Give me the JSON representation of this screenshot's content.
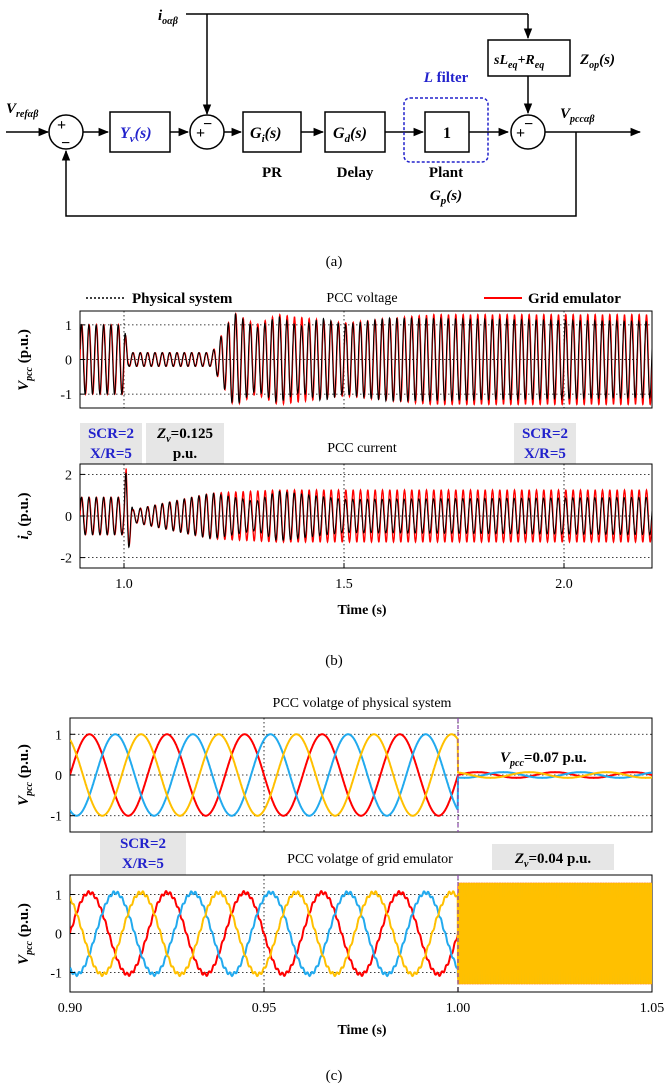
{
  "colors": {
    "physical": "#000000",
    "emulator": "#ff0000",
    "phase_a": "#ff0000",
    "phase_b": "#22aaee",
    "phase_c": "#ffc000",
    "blue_text": "#2222cc",
    "highlight_bg": "#e6e6e6"
  },
  "panel_a": {
    "input_label": "i",
    "input_sub": "oαβ",
    "ref_label": "V",
    "ref_sub": "refαβ",
    "yv_block": "Y",
    "yv_sub": "v",
    "yv_arg": "(s)",
    "gi_block": "G",
    "gi_sub": "i",
    "gi_arg": "(s)",
    "gd_block": "G",
    "gd_sub": "d",
    "gd_arg": "(s)",
    "plant_block": "1",
    "zop_block_s": "sL",
    "zop_block_sub1": "eq",
    "zop_block_plus": "+R",
    "zop_block_sub2": "eq",
    "zop_label": "Z",
    "zop_sub": "op",
    "zop_arg": "(s)",
    "filter_label_l": "L",
    "filter_label_rest": " filter",
    "output_label": "V",
    "output_sub": "pccαβ",
    "pr_label": "PR",
    "delay_label": "Delay",
    "plant_label": "Plant",
    "gp_label": "G",
    "gp_sub": "p",
    "gp_arg": "(s)",
    "sum_plus": "+",
    "sum_minus": "−",
    "caption": "(a)"
  },
  "panel_b": {
    "legend_physical": "Physical system",
    "legend_emulator": "Grid emulator",
    "top_title": "PCC voltage",
    "bottom_title": "PCC current",
    "ylabel_top": "V",
    "ylabel_top_sub": "pcc",
    "ylabel_top_unit": " (p.u.)",
    "ylabel_bottom": "i",
    "ylabel_bottom_sub": "o",
    "ylabel_bottom_unit": " (p.u.)",
    "ann_scr_left": "SCR=2",
    "ann_xr_left": "X/R=5",
    "ann_zv_1": "Z",
    "ann_zv_sub": "v",
    "ann_zv_2": "=0.125",
    "ann_zv_3": "p.u.",
    "ann_scr_right": "SCR=2",
    "ann_xr_right": "X/R=5",
    "xlabel": "Time (s)",
    "caption": "(b)"
  },
  "panel_c": {
    "top_title": "PCC volatge of physical system",
    "bottom_title": "PCC volatge of grid emulator",
    "ylabel": "V",
    "ylabel_sub": "pcc",
    "ylabel_unit": " (p.u.)",
    "ann_scr": "SCR=2",
    "ann_xr": "X/R=5",
    "ann_vpcc_1": "V",
    "ann_vpcc_sub": "pcc",
    "ann_vpcc_2": "=0.07 p.u.",
    "ann_zv_1": "Z",
    "ann_zv_sub": "v",
    "ann_zv_2": "=0.04 p.u.",
    "xlabel": "Time (s)",
    "caption": "(c)"
  },
  "chart_data": [
    {
      "type": "line",
      "title": "PCC voltage",
      "xlim": [
        0.9,
        2.2
      ],
      "ylim": [
        -1.4,
        1.4
      ],
      "yticks": [
        -1,
        0,
        1
      ],
      "xticks": [
        1.0,
        1.5,
        2.0
      ],
      "ylabel": "Vpcc (p.u.)",
      "series": [
        {
          "name": "Physical system",
          "envelope": [
            [
              0.9,
              1.0
            ],
            [
              1.0,
              1.0
            ],
            [
              1.01,
              0.2
            ],
            [
              1.2,
              0.2
            ],
            [
              1.25,
              1.35
            ],
            [
              1.3,
              0.9
            ],
            [
              1.35,
              1.25
            ],
            [
              1.4,
              0.95
            ],
            [
              1.45,
              1.2
            ],
            [
              1.5,
              1.0
            ],
            [
              1.6,
              1.2
            ],
            [
              2.2,
              1.1
            ]
          ]
        },
        {
          "name": "Grid emulator",
          "envelope": [
            [
              0.9,
              1.0
            ],
            [
              1.0,
              1.0
            ],
            [
              1.01,
              0.2
            ],
            [
              1.2,
              0.2
            ],
            [
              1.25,
              1.35
            ],
            [
              1.3,
              1.0
            ],
            [
              1.35,
              1.3
            ],
            [
              1.5,
              1.05
            ],
            [
              1.7,
              1.3
            ],
            [
              2.2,
              1.3
            ]
          ]
        }
      ]
    },
    {
      "type": "line",
      "title": "PCC current",
      "xlim": [
        0.9,
        2.2
      ],
      "ylim": [
        -2.5,
        2.5
      ],
      "yticks": [
        -2,
        0,
        2
      ],
      "xticks": [
        1.0,
        1.5,
        2.0
      ],
      "xlabel": "Time (s)",
      "ylabel": "io (p.u.)",
      "series": [
        {
          "name": "Physical system",
          "envelope": [
            [
              0.9,
              0.9
            ],
            [
              1.0,
              0.9
            ],
            [
              1.005,
              2.4
            ],
            [
              1.02,
              0.3
            ],
            [
              1.2,
              1.1
            ],
            [
              1.3,
              0.7
            ],
            [
              1.35,
              1.2
            ],
            [
              1.5,
              0.8
            ],
            [
              2.2,
              0.9
            ]
          ]
        },
        {
          "name": "Grid emulator",
          "envelope": [
            [
              0.9,
              0.9
            ],
            [
              1.0,
              0.9
            ],
            [
              1.005,
              2.4
            ],
            [
              1.02,
              0.3
            ],
            [
              1.2,
              1.1
            ],
            [
              1.35,
              1.25
            ],
            [
              1.7,
              1.25
            ],
            [
              2.2,
              1.25
            ]
          ]
        }
      ]
    },
    {
      "type": "line",
      "title": "PCC volatge of physical system",
      "xlim": [
        0.9,
        1.05
      ],
      "ylim": [
        -1.4,
        1.4
      ],
      "yticks": [
        -1,
        0,
        1
      ],
      "ylabel": "Vpcc (p.u.)",
      "frequency_hz": 50,
      "amplitude_before": 1.0,
      "amplitude_after": 0.07,
      "event_time": 1.0,
      "series": [
        {
          "name": "a",
          "phase_deg": 0
        },
        {
          "name": "b",
          "phase_deg": -120
        },
        {
          "name": "c",
          "phase_deg": 120
        }
      ]
    },
    {
      "type": "line",
      "title": "PCC volatge of grid emulator",
      "xlim": [
        0.9,
        1.05
      ],
      "ylim": [
        -1.5,
        1.5
      ],
      "yticks": [
        -1,
        0,
        1
      ],
      "xticks": [
        0.9,
        0.95,
        1.0,
        1.05
      ],
      "xlabel": "Time (s)",
      "ylabel": "Vpcc (p.u.)",
      "frequency_hz": 50,
      "amplitude_before": 1.05,
      "amplitude_after": 1.3,
      "event_time": 1.0,
      "series": [
        {
          "name": "a",
          "phase_deg": 0
        },
        {
          "name": "b",
          "phase_deg": -120
        },
        {
          "name": "c",
          "phase_deg": 120
        }
      ]
    }
  ]
}
